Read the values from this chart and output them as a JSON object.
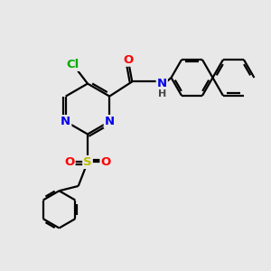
{
  "bg_color": "#e8e8e8",
  "atom_colors": {
    "C": "#000000",
    "N": "#0000ee",
    "O": "#ff0000",
    "S": "#bbbb00",
    "Cl": "#00aa00",
    "H": "#555555"
  },
  "bond_color": "#000000",
  "bond_width": 1.6,
  "font_size": 9.5
}
